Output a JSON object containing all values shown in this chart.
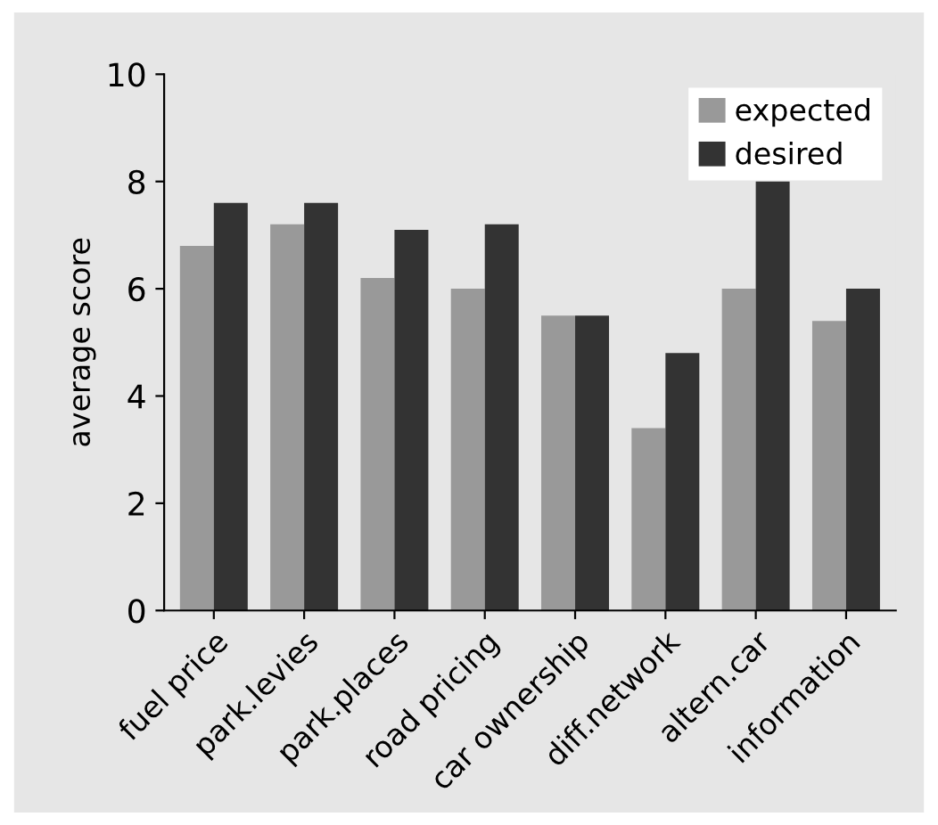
{
  "chart_data": {
    "type": "bar",
    "ylabel": "average score",
    "categories": [
      "fuel price",
      "park.levies",
      "park.places",
      "road pricing",
      "car ownership",
      "diff.network",
      "altern.car",
      "information"
    ],
    "series": [
      {
        "name": "expected",
        "color": "#999999",
        "values": [
          6.8,
          7.2,
          6.2,
          6.0,
          5.5,
          3.4,
          6.0,
          5.4
        ]
      },
      {
        "name": "desired",
        "color": "#333333",
        "values": [
          7.6,
          7.6,
          7.1,
          7.2,
          5.5,
          4.8,
          8.0,
          6.0
        ]
      }
    ],
    "ylim": [
      0,
      10
    ],
    "yticks": [
      0,
      2,
      4,
      6,
      8,
      10
    ],
    "legend": "top right",
    "grid": false
  }
}
